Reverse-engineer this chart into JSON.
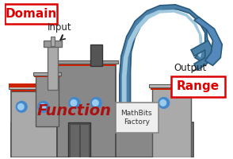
{
  "bg_color": "#ffffff",
  "domain_label": "Domain",
  "input_label": "Input",
  "output_label": "Output",
  "range_label": "Range",
  "function_label": "Function",
  "factory_label": "MathBits\nFactory",
  "domain_text_color": "#dd0000",
  "domain_border_color": "#dd0000",
  "range_text_color": "#dd0000",
  "range_border_color": "#dd0000",
  "function_text_color": "#aa1111",
  "factory_roof_red": "#cc2200",
  "window_color": "#4488cc",
  "pipe_outer": "#4a7fa8",
  "pipe_inner": "#a0c8df",
  "pipe_dark": "#2a5a7a",
  "gray_light": "#aaaaaa",
  "gray_mid": "#888888",
  "gray_dark": "#555555",
  "outline": "#444444"
}
